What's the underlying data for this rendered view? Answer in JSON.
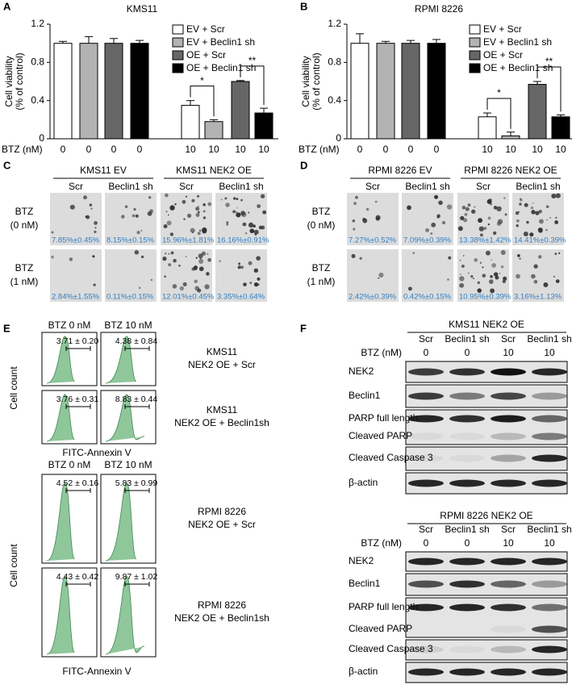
{
  "chart_data": [
    {
      "type": "bar",
      "panel": "A",
      "title": "KMS11",
      "y_label": [
        "Cell viability",
        "(% of control)"
      ],
      "x_label": "BTZ (nM)",
      "categories": [
        "0",
        "10"
      ],
      "series": [
        {
          "name": "EV + Scr",
          "color": "#ffffff",
          "values": [
            1.0,
            0.35
          ],
          "errors": [
            0.02,
            0.05
          ]
        },
        {
          "name": "EV + Beclin1 sh",
          "color": "#b3b3b3",
          "values": [
            1.0,
            0.18
          ],
          "errors": [
            0.07,
            0.02
          ]
        },
        {
          "name": "OE + Scr",
          "color": "#666666",
          "values": [
            1.0,
            0.6
          ],
          "errors": [
            0.05,
            0.01
          ]
        },
        {
          "name": "OE + Beclin1 sh",
          "color": "#000000",
          "values": [
            1.0,
            0.27
          ],
          "errors": [
            0.03,
            0.05
          ]
        }
      ],
      "ylim": [
        0,
        1.2
      ],
      "yticks": [
        0,
        0.4,
        0.8,
        1.2
      ],
      "annotations": [
        "*",
        "**"
      ]
    },
    {
      "type": "bar",
      "panel": "B",
      "title": "RPMI 8226",
      "y_label": [
        "Cell viability",
        "(% of control)"
      ],
      "x_label": "BTZ (nM)",
      "categories": [
        "0",
        "10"
      ],
      "series": [
        {
          "name": "EV + Scr",
          "color": "#ffffff",
          "values": [
            1.0,
            0.23
          ],
          "errors": [
            0.1,
            0.04
          ]
        },
        {
          "name": "EV + Beclin1 sh",
          "color": "#b3b3b3",
          "values": [
            1.0,
            0.03
          ],
          "errors": [
            0.02,
            0.04
          ]
        },
        {
          "name": "OE + Scr",
          "color": "#666666",
          "values": [
            1.0,
            0.57
          ],
          "errors": [
            0.03,
            0.03
          ]
        },
        {
          "name": "OE + Beclin1 sh",
          "color": "#000000",
          "values": [
            1.0,
            0.23
          ],
          "errors": [
            0.04,
            0.02
          ]
        }
      ],
      "ylim": [
        0,
        1.2
      ],
      "yticks": [
        0,
        0.4,
        0.8,
        1.2
      ],
      "annotations": [
        "*",
        "**"
      ]
    }
  ],
  "colony_assays": [
    {
      "panel": "C",
      "groups": [
        {
          "title": "KMS11 EV",
          "columns": [
            "Scr",
            "Beclin1 sh"
          ]
        },
        {
          "title": "KMS11 NEK2 OE",
          "columns": [
            "Scr",
            "Beclin1 sh"
          ]
        }
      ],
      "rows": [
        {
          "label": [
            "BTZ",
            "(0 nM)"
          ],
          "values": [
            "7.85%±0.45%",
            "8.15%±0.15%",
            "15.96%±1.81%",
            "16.16%±0.91%"
          ]
        },
        {
          "label": [
            "BTZ",
            "(1 nM)"
          ],
          "values": [
            "2.84%±1.55%",
            "0.11%±0.15%",
            "12.01%±0.45%",
            "3.35%±0.64%"
          ]
        }
      ]
    },
    {
      "panel": "D",
      "groups": [
        {
          "title": "RPMI 8226 EV",
          "columns": [
            "Scr",
            "Beclin1 sh"
          ]
        },
        {
          "title": "RPMI 8226 NEK2 OE",
          "columns": [
            "Scr",
            "Beclin1 sh"
          ]
        }
      ],
      "rows": [
        {
          "label": [
            "BTZ",
            "(0 nM)"
          ],
          "values": [
            "7.27%±0.52%",
            "7.09%±0.39%",
            "13.38%±1.42%",
            "14.41%±0.39%"
          ]
        },
        {
          "label": [
            "BTZ",
            "(1 nM)"
          ],
          "values": [
            "2.42%±0.39%",
            "0.42%±0.15%",
            "10.95%±0.39%",
            "3.16%±1.13%"
          ]
        }
      ]
    }
  ],
  "flow": {
    "panel": "E",
    "y_label": "Cell count",
    "x_label": "FITC-Annexin V",
    "blocks": [
      {
        "columns": [
          "BTZ 0 nM",
          "BTZ 10 nM"
        ],
        "rows": [
          {
            "label": [
              "KMS11",
              "NEK2 OE + Scr"
            ],
            "values": [
              "3.71 ± 0.20",
              "4.38 ± 0.84"
            ]
          },
          {
            "label": [
              "KMS11",
              "NEK2 OE + Beclin1sh"
            ],
            "values": [
              "3.76 ± 0.31",
              "8.83 ± 0.44"
            ]
          }
        ]
      },
      {
        "columns": [
          "BTZ 0 nM",
          "BTZ 10 nM"
        ],
        "rows": [
          {
            "label": [
              "RPMI 8226",
              "NEK2 OE + Scr"
            ],
            "values": [
              "4.52 ± 0.16",
              "5.83 ± 0.99"
            ]
          },
          {
            "label": [
              "RPMI 8226",
              "NEK2 OE + Beclin1sh"
            ],
            "values": [
              "4.43 ± 0.42",
              "9.87 ± 1.02"
            ]
          }
        ]
      }
    ]
  },
  "western": {
    "panel": "F",
    "blots": [
      {
        "title": "KMS11 NEK2 OE",
        "columns": [
          "Scr",
          "Beclin1 sh",
          "Scr",
          "Beclin1 sh"
        ],
        "btz_label": "BTZ (nM)",
        "btz": [
          "0",
          "0",
          "10",
          "10"
        ],
        "rows": [
          "NEK2",
          "Beclin1",
          "PARP full length",
          "Cleaved PARP",
          "Cleaved Caspase 3",
          "β-actin"
        ]
      },
      {
        "title": "RPMI 8226 NEK2 OE",
        "columns": [
          "Scr",
          "Beclin1 sh",
          "Scr",
          "Beclin1 sh"
        ],
        "btz_label": "BTZ (nM)",
        "btz": [
          "0",
          "0",
          "10",
          "10"
        ],
        "rows": [
          "NEK2",
          "Beclin1",
          "PARP full length",
          "Cleaved PARP",
          "Cleaved Caspase 3",
          "β-actin"
        ]
      }
    ]
  }
}
